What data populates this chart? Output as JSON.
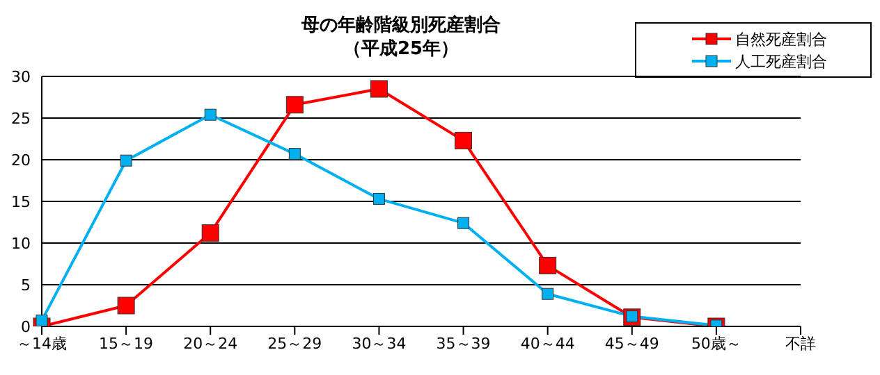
{
  "chart_data": {
    "type": "line",
    "title": "母の年齢階級別死産割合",
    "subtitle": "（平成25年）",
    "categories": [
      "～14歳",
      "15～19",
      "20～24",
      "25～29",
      "30～34",
      "35～39",
      "40～44",
      "45～49",
      "50歳～",
      "不詳"
    ],
    "series": [
      {
        "name": "自然死産割合",
        "color": "#ff0000",
        "values": [
          0,
          2.5,
          11.2,
          26.6,
          28.5,
          22.3,
          7.3,
          1.1,
          0,
          null
        ]
      },
      {
        "name": "人工死産割合",
        "color": "#00b0f0",
        "values": [
          0.7,
          19.9,
          25.4,
          20.7,
          15.3,
          12.4,
          3.9,
          1.2,
          0.1,
          null
        ]
      }
    ],
    "ylim": [
      0,
      30
    ],
    "yticks": [
      0,
      5,
      10,
      15,
      20,
      25,
      30
    ],
    "grid": "y",
    "legend": "top right",
    "marker": "square",
    "line_style": "solid"
  }
}
